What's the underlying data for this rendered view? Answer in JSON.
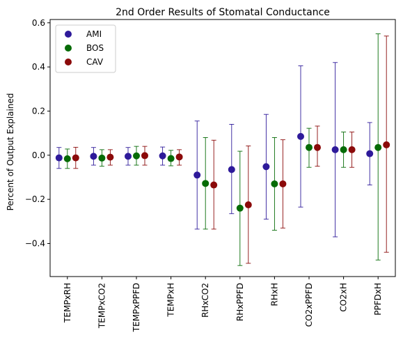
{
  "chart_data": {
    "type": "scatter",
    "title": "2nd Order Results of Stomatal Conductance",
    "xlabel": "",
    "ylabel": "Percent of Output Explained",
    "categories": [
      "TEMPxRH",
      "TEMPxCO2",
      "TEMPxPPFD",
      "TEMPxH",
      "RHxCO2",
      "RHxPPFD",
      "RHxH",
      "CO2xPPFD",
      "CO2xH",
      "PPFDxH"
    ],
    "ylim": [
      -0.55,
      0.615
    ],
    "yticks": [
      -0.4,
      -0.2,
      0.0,
      0.2,
      0.4,
      0.6
    ],
    "ytick_labels": [
      "−0.4",
      "−0.2",
      "0.0",
      "0.2",
      "0.4",
      "0.6"
    ],
    "grid": false,
    "legend_position": "top-left",
    "series": [
      {
        "name": "AMI",
        "color": "#2e1a9a",
        "values": [
          -0.012,
          -0.005,
          -0.005,
          -0.003,
          -0.09,
          -0.065,
          -0.052,
          0.085,
          0.025,
          0.007
        ],
        "err_low": [
          -0.06,
          -0.045,
          -0.045,
          -0.045,
          -0.335,
          -0.265,
          -0.29,
          -0.235,
          -0.37,
          -0.135
        ],
        "err_high": [
          0.035,
          0.035,
          0.035,
          0.037,
          0.155,
          0.14,
          0.185,
          0.405,
          0.42,
          0.148
        ]
      },
      {
        "name": "BOS",
        "color": "#066b06",
        "values": [
          -0.016,
          -0.013,
          -0.003,
          -0.015,
          -0.128,
          -0.24,
          -0.13,
          0.035,
          0.025,
          0.035
        ],
        "err_low": [
          -0.06,
          -0.05,
          -0.045,
          -0.048,
          -0.335,
          -0.5,
          -0.34,
          -0.055,
          -0.055,
          -0.475
        ],
        "err_high": [
          0.028,
          0.025,
          0.04,
          0.022,
          0.08,
          0.018,
          0.08,
          0.122,
          0.105,
          0.55
        ]
      },
      {
        "name": "CAV",
        "color": "#8b0a0a",
        "values": [
          -0.012,
          -0.009,
          -0.002,
          -0.008,
          -0.135,
          -0.225,
          -0.13,
          0.035,
          0.025,
          0.047
        ],
        "err_low": [
          -0.06,
          -0.045,
          -0.045,
          -0.045,
          -0.335,
          -0.49,
          -0.33,
          -0.05,
          -0.055,
          -0.44
        ],
        "err_high": [
          0.036,
          0.025,
          0.04,
          0.025,
          0.068,
          0.042,
          0.07,
          0.132,
          0.105,
          0.54
        ]
      }
    ]
  }
}
